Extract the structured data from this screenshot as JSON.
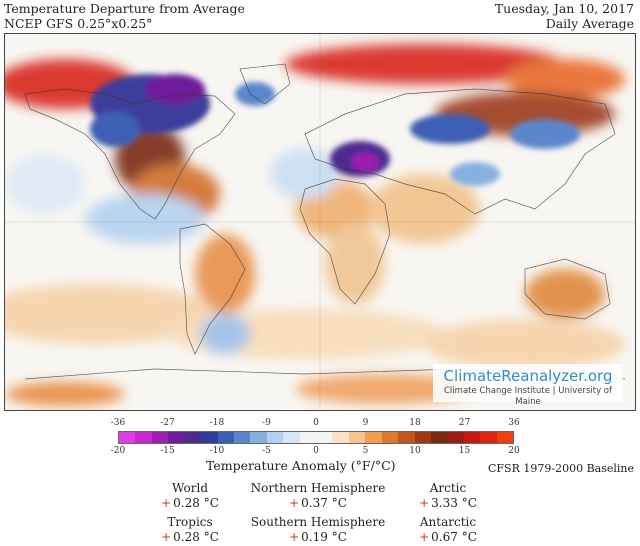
{
  "header": {
    "title": "Temperature Departure from Average",
    "model": "NCEP GFS 0.25°x0.25°",
    "date": "Tuesday, Jan 10, 2017",
    "period": "Daily Average"
  },
  "logo": {
    "title": "ClimateReanalyzer.org",
    "subtitle": "Climate Change Institute | University of Maine"
  },
  "legend": {
    "title": "Temperature Anomaly (°F/°C)",
    "fahrenheit_ticks": [
      "-36",
      "-27",
      "-18",
      "-9",
      "0",
      "9",
      "18",
      "27",
      "36"
    ],
    "celsius_ticks": [
      "-20",
      "-15",
      "-10",
      "-5",
      "0",
      "5",
      "10",
      "15",
      "20"
    ],
    "colors": [
      "#e03ce6",
      "#c828d2",
      "#a01eb4",
      "#6e1e9c",
      "#4b2b8e",
      "#2f3c9a",
      "#3c5fb4",
      "#5b86cc",
      "#86b0e0",
      "#b4d2f0",
      "#d6e8f8",
      "#f4f4f4",
      "#f4f4f4",
      "#fbe2c4",
      "#f7c48e",
      "#ef9e54",
      "#e0782c",
      "#c2561c",
      "#9e3a14",
      "#7a2a10",
      "#9a1c14",
      "#c41a12",
      "#e02410",
      "#f04010"
    ],
    "baseline": "CFSR 1979-2000 Baseline"
  },
  "stats": {
    "world": {
      "label": "World",
      "sign": "+",
      "value": "0.28 °C"
    },
    "northern_hemisphere": {
      "label": "Northern Hemisphere",
      "sign": "+",
      "value": "0.37 °C"
    },
    "arctic": {
      "label": "Arctic",
      "sign": "+",
      "value": "3.33 °C"
    },
    "tropics": {
      "label": "Tropics",
      "sign": "+",
      "value": "0.28 °C"
    },
    "southern_hemisphere": {
      "label": "Southern Hemisphere",
      "sign": "+",
      "value": "0.19 °C"
    },
    "antarctic": {
      "label": "Antarctic",
      "sign": "+",
      "value": "0.67 °C"
    }
  }
}
